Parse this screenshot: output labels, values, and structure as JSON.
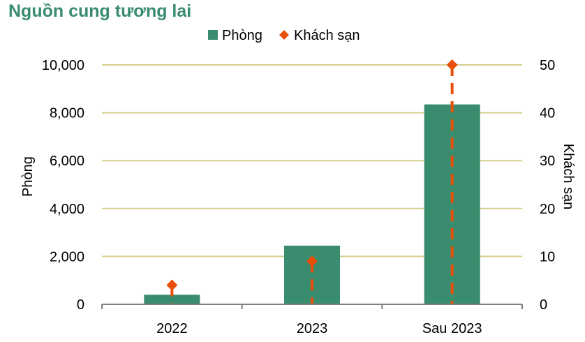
{
  "title": "Nguồn cung tương lai",
  "legend": {
    "rooms_label": "Phòng",
    "hotels_label": "Khách sạn"
  },
  "axes": {
    "left_label": "Phòng",
    "right_label": "Khách sạn"
  },
  "colors": {
    "title": "#3a8c6e",
    "bar": "#3a8c6e",
    "marker": "#e8500a",
    "grid": "#d6cf8f",
    "axis": "#7f7f7f"
  },
  "chart_data": {
    "type": "bar",
    "title": "Nguồn cung tương lai",
    "categories": [
      "2022",
      "2023",
      "Sau 2023"
    ],
    "series": [
      {
        "name": "Phòng",
        "type": "bar",
        "axis": "left",
        "values": [
          400,
          2450,
          8350
        ]
      },
      {
        "name": "Khách sạn",
        "type": "marker-line",
        "axis": "right",
        "values": [
          4,
          9,
          50
        ]
      }
    ],
    "ylabel": "Phòng",
    "ylim": [
      0,
      10000
    ],
    "yticks": [
      "0",
      "2,000",
      "4,000",
      "6,000",
      "8,000",
      "10,000"
    ],
    "y2label": "Khách sạn",
    "y2lim": [
      0,
      50
    ],
    "y2ticks": [
      "0",
      "10",
      "20",
      "30",
      "40",
      "50"
    ],
    "legend_position": "top-center",
    "grid": true
  }
}
